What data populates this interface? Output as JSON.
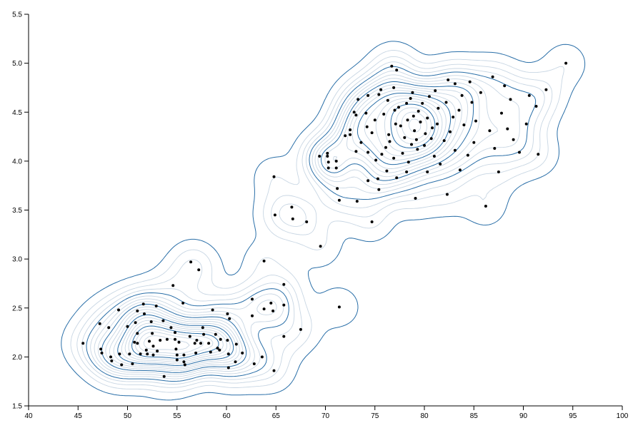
{
  "chart_data": {
    "type": "contour-density-scatter",
    "title": "",
    "xlabel": "",
    "ylabel": "",
    "xlim": [
      40,
      100
    ],
    "ylim": [
      1.5,
      5.5
    ],
    "x_ticks": [
      40,
      45,
      50,
      55,
      60,
      65,
      70,
      75,
      80,
      85,
      90,
      95,
      100
    ],
    "y_ticks": [
      1.5,
      2.0,
      2.5,
      3.0,
      3.5,
      4.0,
      4.5,
      5.0,
      5.5
    ],
    "x_tick_labels": [
      "40",
      "45",
      "50",
      "55",
      "60",
      "65",
      "70",
      "75",
      "80",
      "85",
      "90",
      "95",
      "100"
    ],
    "y_tick_labels": [
      "1.5",
      "2.0",
      "2.5",
      "3.0",
      "3.5",
      "4.0",
      "4.5",
      "5.0",
      "5.5"
    ],
    "grid": false,
    "colors": {
      "contour_dark": "#2a6fa8",
      "contour_light": "#c8d6e3",
      "point": "#000000"
    },
    "points": [
      [
        45.5,
        2.14
      ],
      [
        47.2,
        2.34
      ],
      [
        47.3,
        2.08
      ],
      [
        47.4,
        2.04
      ],
      [
        48.1,
        2.3
      ],
      [
        48.3,
        2.0
      ],
      [
        48.4,
        1.96
      ],
      [
        49.1,
        2.48
      ],
      [
        49.2,
        2.03
      ],
      [
        49.4,
        1.92
      ],
      [
        50.0,
        2.31
      ],
      [
        50.2,
        2.03
      ],
      [
        50.5,
        1.93
      ],
      [
        50.7,
        2.15
      ],
      [
        50.8,
        2.35
      ],
      [
        51.0,
        2.47
      ],
      [
        51.0,
        2.24
      ],
      [
        51.0,
        2.14
      ],
      [
        51.3,
        2.03
      ],
      [
        51.6,
        2.54
      ],
      [
        51.7,
        2.44
      ],
      [
        51.9,
        2.07
      ],
      [
        52.0,
        2.03
      ],
      [
        52.2,
        2.16
      ],
      [
        52.4,
        2.36
      ],
      [
        52.5,
        2.24
      ],
      [
        52.6,
        2.11
      ],
      [
        52.6,
        2.02
      ],
      [
        52.9,
        2.52
      ],
      [
        53.0,
        2.06
      ],
      [
        53.3,
        2.17
      ],
      [
        53.6,
        2.37
      ],
      [
        53.7,
        1.8
      ],
      [
        54.0,
        2.18
      ],
      [
        54.4,
        2.3
      ],
      [
        54.6,
        2.73
      ],
      [
        54.8,
        2.25
      ],
      [
        54.8,
        2.18
      ],
      [
        54.9,
        2.08
      ],
      [
        55.0,
        1.97
      ],
      [
        55.0,
        2.02
      ],
      [
        55.2,
        2.15
      ],
      [
        55.6,
        2.55
      ],
      [
        55.7,
        2.02
      ],
      [
        55.7,
        1.95
      ],
      [
        55.8,
        1.92
      ],
      [
        56.3,
        2.21
      ],
      [
        56.4,
        2.97
      ],
      [
        56.8,
        2.14
      ],
      [
        56.9,
        2.04
      ],
      [
        57.0,
        2.17
      ],
      [
        57.2,
        2.89
      ],
      [
        57.4,
        2.14
      ],
      [
        57.6,
        2.3
      ],
      [
        57.7,
        2.23
      ],
      [
        58.2,
        2.14
      ],
      [
        58.4,
        2.05
      ],
      [
        58.6,
        2.48
      ],
      [
        58.9,
        2.23
      ],
      [
        59.1,
        2.09
      ],
      [
        59.3,
        2.07
      ],
      [
        59.4,
        2.18
      ],
      [
        60.1,
        2.44
      ],
      [
        60.1,
        2.17
      ],
      [
        60.2,
        2.03
      ],
      [
        60.2,
        1.89
      ],
      [
        60.3,
        2.39
      ],
      [
        60.9,
        1.95
      ],
      [
        61.0,
        2.13
      ],
      [
        61.6,
        2.04
      ],
      [
        62.6,
        2.59
      ],
      [
        62.6,
        2.42
      ],
      [
        62.8,
        1.93
      ],
      [
        63.6,
        2.0
      ],
      [
        63.8,
        2.98
      ],
      [
        63.8,
        2.49
      ],
      [
        64.5,
        2.55
      ],
      [
        64.7,
        2.47
      ],
      [
        64.8,
        1.86
      ],
      [
        64.8,
        3.84
      ],
      [
        64.9,
        3.45
      ],
      [
        65.8,
        2.74
      ],
      [
        65.8,
        2.53
      ],
      [
        65.8,
        2.21
      ],
      [
        66.6,
        3.53
      ],
      [
        66.7,
        3.41
      ],
      [
        67.5,
        2.28
      ],
      [
        68.1,
        3.38
      ],
      [
        69.4,
        4.05
      ],
      [
        69.5,
        3.13
      ],
      [
        70.2,
        4.08
      ],
      [
        70.2,
        4.05
      ],
      [
        70.3,
        3.99
      ],
      [
        70.3,
        3.93
      ],
      [
        71.1,
        4.0
      ],
      [
        71.1,
        3.93
      ],
      [
        71.2,
        3.72
      ],
      [
        71.4,
        3.6
      ],
      [
        71.4,
        2.51
      ],
      [
        72.0,
        4.26
      ],
      [
        72.5,
        4.32
      ],
      [
        72.5,
        4.27
      ],
      [
        72.9,
        4.5
      ],
      [
        73.1,
        4.47
      ],
      [
        73.1,
        4.1
      ],
      [
        73.2,
        3.59
      ],
      [
        73.3,
        4.63
      ],
      [
        73.6,
        4.19
      ],
      [
        74.1,
        4.49
      ],
      [
        74.2,
        4.35
      ],
      [
        74.3,
        3.8
      ],
      [
        74.3,
        4.67
      ],
      [
        74.3,
        4.09
      ],
      [
        74.7,
        3.38
      ],
      [
        74.7,
        4.29
      ],
      [
        75.0,
        4.42
      ],
      [
        75.1,
        4.01
      ],
      [
        75.3,
        3.82
      ],
      [
        75.4,
        3.71
      ],
      [
        75.4,
        4.68
      ],
      [
        75.6,
        4.73
      ],
      [
        75.7,
        4.07
      ],
      [
        75.9,
        4.48
      ],
      [
        76.1,
        4.14
      ],
      [
        76.2,
        3.9
      ],
      [
        76.3,
        4.62
      ],
      [
        76.4,
        4.27
      ],
      [
        76.5,
        4.2
      ],
      [
        76.7,
        4.97
      ],
      [
        76.9,
        4.03
      ],
      [
        76.9,
        4.75
      ],
      [
        77.0,
        4.52
      ],
      [
        77.1,
        4.38
      ],
      [
        77.2,
        3.83
      ],
      [
        77.2,
        4.93
      ],
      [
        77.4,
        4.55
      ],
      [
        77.6,
        4.36
      ],
      [
        77.8,
        4.08
      ],
      [
        78.0,
        4.24
      ],
      [
        78.2,
        3.89
      ],
      [
        78.2,
        4.59
      ],
      [
        78.3,
        4.42
      ],
      [
        78.4,
        3.99
      ],
      [
        78.6,
        4.64
      ],
      [
        78.7,
        4.17
      ],
      [
        78.8,
        4.7
      ],
      [
        78.9,
        4.46
      ],
      [
        79.0,
        4.31
      ],
      [
        79.1,
        3.62
      ],
      [
        79.2,
        4.22
      ],
      [
        79.3,
        4.12
      ],
      [
        79.4,
        4.51
      ],
      [
        79.6,
        4.4
      ],
      [
        79.8,
        4.59
      ],
      [
        80.0,
        4.16
      ],
      [
        80.1,
        4.28
      ],
      [
        80.3,
        4.44
      ],
      [
        80.3,
        3.89
      ],
      [
        80.5,
        4.66
      ],
      [
        80.7,
        4.23
      ],
      [
        80.8,
        4.34
      ],
      [
        81.0,
        4.05
      ],
      [
        81.1,
        4.72
      ],
      [
        81.3,
        4.38
      ],
      [
        81.4,
        4.54
      ],
      [
        81.6,
        3.97
      ],
      [
        82.0,
        4.21
      ],
      [
        82.2,
        4.6
      ],
      [
        82.3,
        3.66
      ],
      [
        82.4,
        4.83
      ],
      [
        82.6,
        4.3
      ],
      [
        82.9,
        4.45
      ],
      [
        83.1,
        4.79
      ],
      [
        83.1,
        4.11
      ],
      [
        83.5,
        4.52
      ],
      [
        83.6,
        3.91
      ],
      [
        83.8,
        4.67
      ],
      [
        84.0,
        4.37
      ],
      [
        84.4,
        4.06
      ],
      [
        84.6,
        4.81
      ],
      [
        84.8,
        4.6
      ],
      [
        85.0,
        4.19
      ],
      [
        85.2,
        4.41
      ],
      [
        85.7,
        4.7
      ],
      [
        86.2,
        3.54
      ],
      [
        86.6,
        4.31
      ],
      [
        86.9,
        4.86
      ],
      [
        87.1,
        4.13
      ],
      [
        87.5,
        3.89
      ],
      [
        87.8,
        4.49
      ],
      [
        88.1,
        4.77
      ],
      [
        88.4,
        4.33
      ],
      [
        88.7,
        4.63
      ],
      [
        89.0,
        4.22
      ],
      [
        89.6,
        4.09
      ],
      [
        90.3,
        4.38
      ],
      [
        90.6,
        4.67
      ],
      [
        91.3,
        4.56
      ],
      [
        91.5,
        4.07
      ],
      [
        92.3,
        4.73
      ],
      [
        94.3,
        5.0
      ]
    ]
  }
}
